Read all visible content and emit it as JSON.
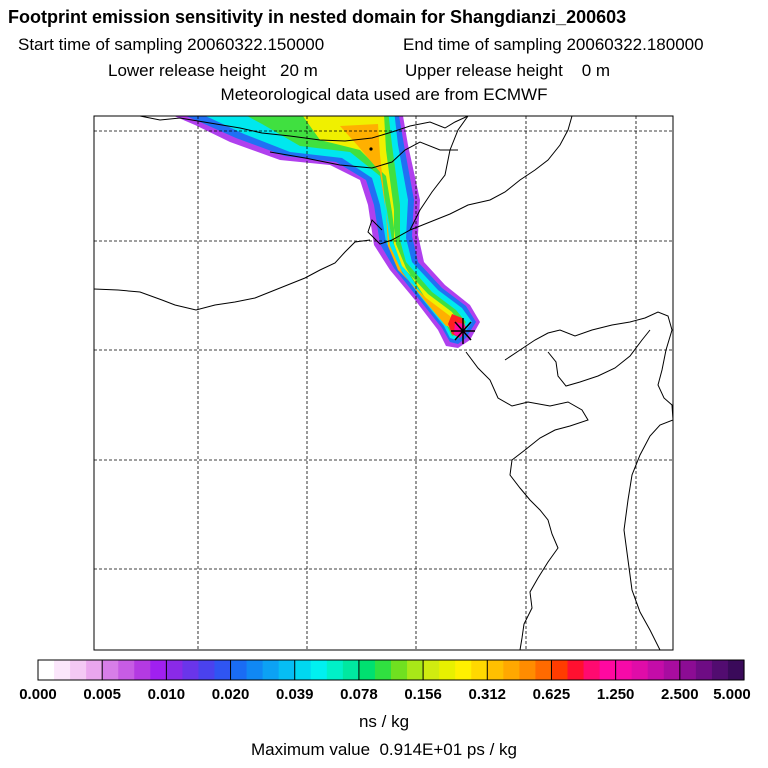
{
  "header": {
    "title": "Footprint emission sensitivity in nested domain for Shangdianzi_200603",
    "start_label": "Start time of sampling 20060322.150000",
    "end_label": "End time of sampling 20060322.180000",
    "lower_label": "Lower release height   20 m",
    "upper_label": "Upper release height    0 m",
    "met_label": "Meteorological data used are from ECMWF"
  },
  "chart_data": {
    "type": "heatmap",
    "title": "Footprint emission sensitivity in nested domain for Shangdianzi_200603",
    "grid": true,
    "legend_position": "bottom",
    "colorbar": {
      "tick_labels": [
        "0.000",
        "0.005",
        "0.010",
        "0.020",
        "0.039",
        "0.078",
        "0.156",
        "0.312",
        "0.625",
        "1.250",
        "2.500",
        "5.000"
      ],
      "unit": "ns / kg",
      "colors": [
        "#ffffff",
        "#fbe6fb",
        "#f4c8f4",
        "#eaa6ee",
        "#d87ee8",
        "#c75ce4",
        "#b43ae2",
        "#a020f0",
        "#8a2ae8",
        "#6a35ea",
        "#4a42ee",
        "#2f55f2",
        "#1a6cf4",
        "#1088f4",
        "#0ca2f4",
        "#06bef4",
        "#00d8f0",
        "#00f0f0",
        "#00f0c8",
        "#00e8a0",
        "#00e070",
        "#30e040",
        "#70e020",
        "#a8e818",
        "#d0ec10",
        "#e8f000",
        "#fff000",
        "#ffd800",
        "#ffc000",
        "#ffa800",
        "#ff8c00",
        "#ff6a00",
        "#ff3c00",
        "#ff1030",
        "#ff0a70",
        "#ff08a0",
        "#f60aa8",
        "#e00ca8",
        "#c40ca8",
        "#a80ca0",
        "#8c0c94",
        "#6e0c84",
        "#520c70",
        "#3a0a5a"
      ]
    },
    "receptor": "Shangdianzi",
    "maximum_value": "Maximum value  0.914E+01 ps / kg"
  }
}
